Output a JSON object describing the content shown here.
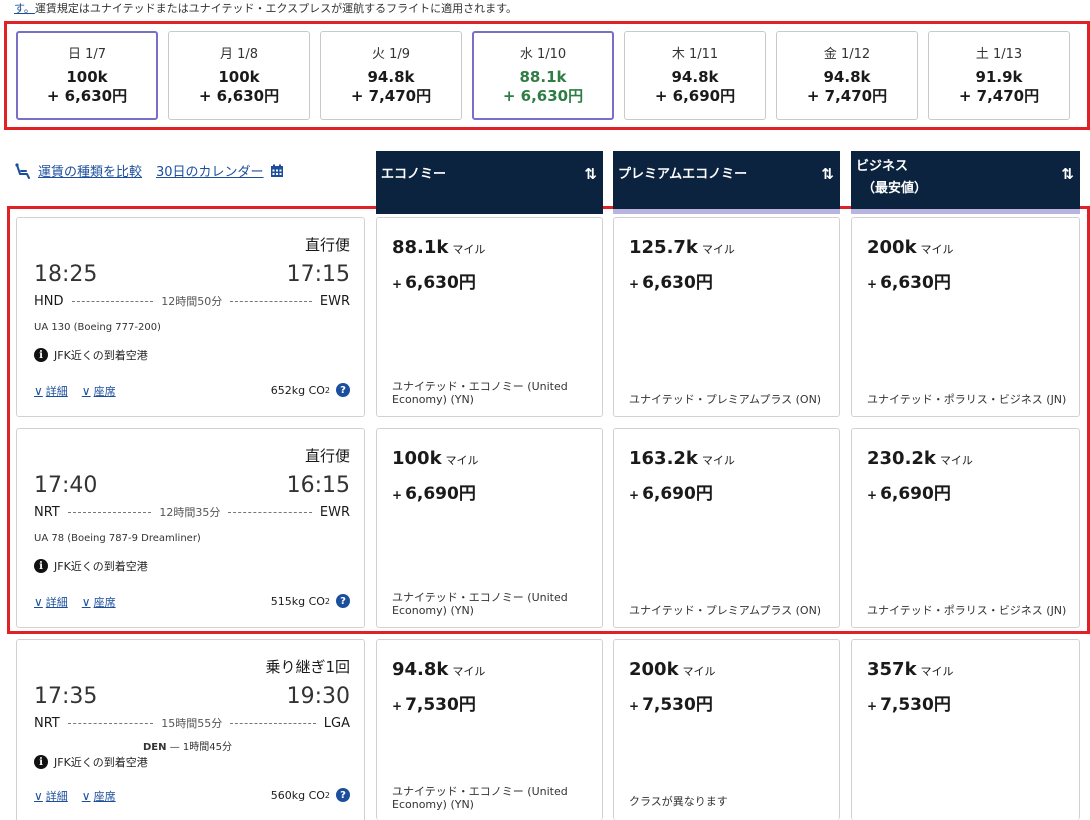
{
  "top_note": {
    "link": "す。",
    "text": "運賃規定はユナイテッドまたはユナイテッド・エクスプレスが運航するフライトに適用されます。"
  },
  "dates": [
    {
      "day": "日 1/7",
      "miles": "100k",
      "yen": "+ 6,630円",
      "selected": true,
      "green": false
    },
    {
      "day": "月 1/8",
      "miles": "100k",
      "yen": "+ 6,630円",
      "selected": false,
      "green": false
    },
    {
      "day": "火 1/9",
      "miles": "94.8k",
      "yen": "+ 7,470円",
      "selected": false,
      "green": false
    },
    {
      "day": "水 1/10",
      "miles": "88.1k",
      "yen": "+ 6,630円",
      "selected": true,
      "green": true
    },
    {
      "day": "木 1/11",
      "miles": "94.8k",
      "yen": "+ 6,690円",
      "selected": false,
      "green": false
    },
    {
      "day": "金 1/12",
      "miles": "94.8k",
      "yen": "+ 7,470円",
      "selected": false,
      "green": false
    },
    {
      "day": "土 1/13",
      "miles": "91.9k",
      "yen": "+ 7,470円",
      "selected": false,
      "green": false
    }
  ],
  "links": {
    "compare": "運賃の種類を比較",
    "calendar": "30日のカレンダー"
  },
  "columns": {
    "economy": "エコノミー",
    "premium": "プレミアムエコノミー",
    "business": "ビジネス",
    "business_sub": "（最安値）",
    "sort_icon": "sort-arrows-icon"
  },
  "flights": [
    {
      "type": "直行便",
      "dep_time": "18:25",
      "arr_time": "17:15",
      "from": "HND",
      "to": "EWR",
      "duration": "12時間50分",
      "aircraft": "UA 130 (Boeing 777-200)",
      "info": "JFK近くの到着空港",
      "details": "詳細",
      "seats": "座席",
      "co2": "652kg CO",
      "fares": [
        {
          "miles": "88.1k",
          "unit": "マイル",
          "yen": "6,630円",
          "desc": "ユナイテッド・エコノミー (United Economy) (YN)"
        },
        {
          "miles": "125.7k",
          "unit": "マイル",
          "yen": "6,630円",
          "desc": "ユナイテッド・プレミアムプラス (ON)"
        },
        {
          "miles": "200k",
          "unit": "マイル",
          "yen": "6,630円",
          "desc": "ユナイテッド・ポラリス・ビジネス (JN)"
        }
      ]
    },
    {
      "type": "直行便",
      "dep_time": "17:40",
      "arr_time": "16:15",
      "from": "NRT",
      "to": "EWR",
      "duration": "12時間35分",
      "aircraft": "UA 78 (Boeing 787-9 Dreamliner)",
      "info": "JFK近くの到着空港",
      "details": "詳細",
      "seats": "座席",
      "co2": "515kg CO",
      "fares": [
        {
          "miles": "100k",
          "unit": "マイル",
          "yen": "6,690円",
          "desc": "ユナイテッド・エコノミー (United Economy) (YN)"
        },
        {
          "miles": "163.2k",
          "unit": "マイル",
          "yen": "6,690円",
          "desc": "ユナイテッド・プレミアムプラス (ON)"
        },
        {
          "miles": "230.2k",
          "unit": "マイル",
          "yen": "6,690円",
          "desc": "ユナイテッド・ポラリス・ビジネス (JN)"
        }
      ]
    },
    {
      "type": "乗り継ぎ1回",
      "dep_time": "17:35",
      "arr_time": "19:30",
      "from": "NRT",
      "to": "LGA",
      "duration": "15時間55分",
      "connection_airport": "DEN",
      "connection_time": "— 1時間45分",
      "info": "JFK近くの到着空港",
      "details": "詳細",
      "seats": "座席",
      "co2": "560kg CO",
      "fares": [
        {
          "miles": "94.8k",
          "unit": "マイル",
          "yen": "7,530円",
          "desc": "ユナイテッド・エコノミー (United Economy) (YN)"
        },
        {
          "miles": "200k",
          "unit": "マイル",
          "yen": "7,530円",
          "desc": "クラスが異なります"
        },
        {
          "miles": "357k",
          "unit": "マイル",
          "yen": "7,530円",
          "desc": ""
        }
      ]
    }
  ],
  "plus_sign": "+",
  "co2_sub": "2",
  "info_glyph": "i",
  "help_glyph": "?",
  "colors": {
    "navy": "#0c2340",
    "link": "#1b4f9c",
    "highlight": "#e02227",
    "green": "#2f7d45",
    "selected_border": "#7a6fc7"
  }
}
